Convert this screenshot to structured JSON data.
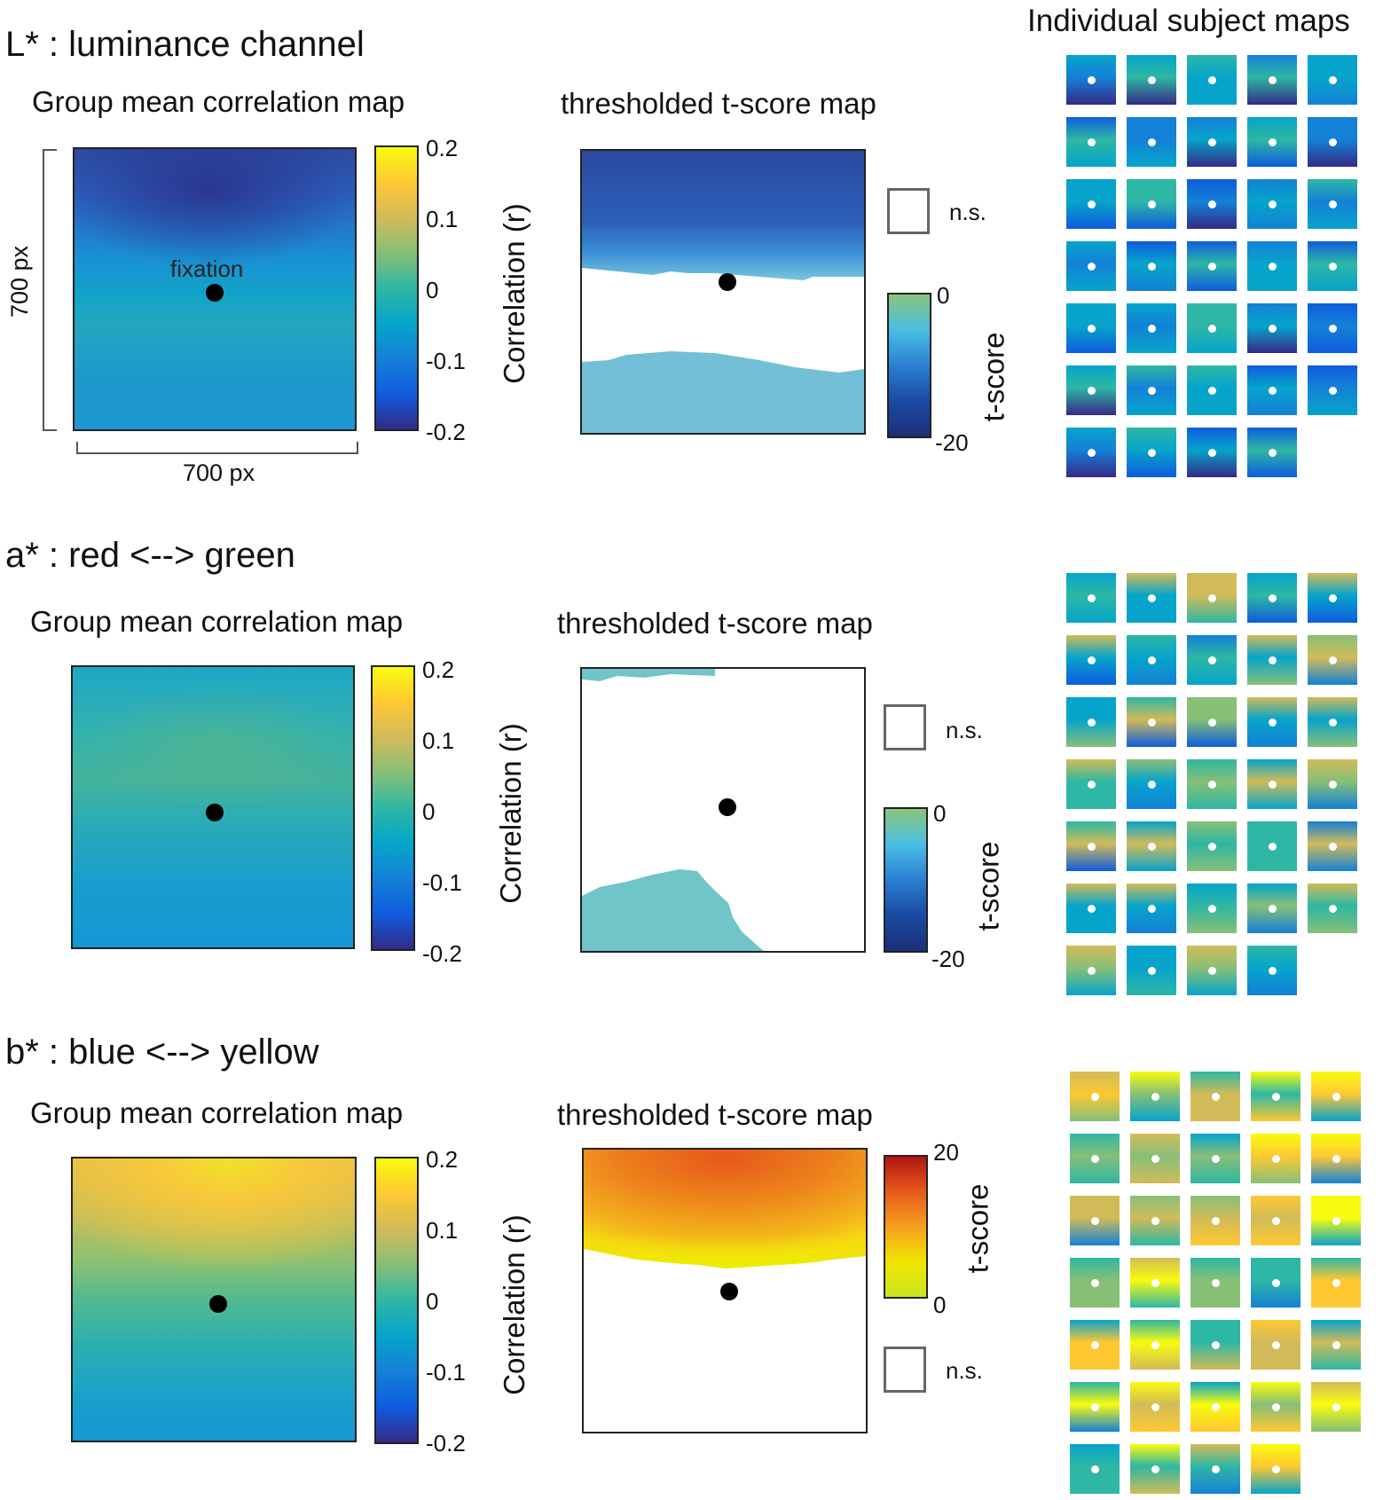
{
  "header": {
    "individual_title": "Individual subject maps"
  },
  "colors": {
    "parula": [
      "#352a87",
      "#0f5cdd",
      "#1481d6",
      "#06a4ca",
      "#2eb7a4",
      "#87bf77",
      "#d1bb59",
      "#fec832",
      "#f9fb0e"
    ],
    "neg_t": [
      "#8cc47c",
      "#49bfe4",
      "#2a7fd1",
      "#1a4aa1",
      "#1c2f78"
    ],
    "pos_t": [
      "#c9e522",
      "#f0e600",
      "#f5a020",
      "#e85a1a",
      "#b01512"
    ],
    "ns_region_L_top": "#2b4fa3",
    "ns_region_L_bottom": "#74bfd8",
    "sig_teal": "#6fc5c7"
  },
  "sections": [
    {
      "id": "L",
      "title": "L* : luminance channel",
      "group_title": "Group mean correlation map",
      "tmap_title": "thresholded t-score map",
      "fixation_label": "fixation",
      "dim_vertical": "700 px",
      "dim_horizontal": "700 px",
      "cbar_ticks": [
        "0.2",
        "0.1",
        "0",
        "-0.1",
        "-0.2"
      ],
      "cbar_label": "Correlation (r)",
      "ns_label": "n.s.",
      "t_ticks": [
        "0",
        "-20"
      ],
      "t_label": "t-score",
      "subject_count": 34
    },
    {
      "id": "a",
      "title": "a* : red <--> green",
      "group_title": "Group mean correlation map",
      "tmap_title": "thresholded t-score map",
      "cbar_ticks": [
        "0.2",
        "0.1",
        "0",
        "-0.1",
        "-0.2"
      ],
      "cbar_label": "Correlation (r)",
      "ns_label": "n.s.",
      "t_ticks": [
        "0",
        "-20"
      ],
      "t_label": "t-score",
      "subject_count": 34
    },
    {
      "id": "b",
      "title": "b* : blue <--> yellow",
      "group_title": "Group mean correlation map",
      "tmap_title": "thresholded t-score map",
      "cbar_ticks": [
        "0.2",
        "0.1",
        "0",
        "-0.1",
        "-0.2"
      ],
      "cbar_label": "Correlation (r)",
      "ns_label": "n.s.",
      "t_ticks": [
        "20",
        "0"
      ],
      "t_label": "t-score",
      "subject_count": 34
    }
  ]
}
